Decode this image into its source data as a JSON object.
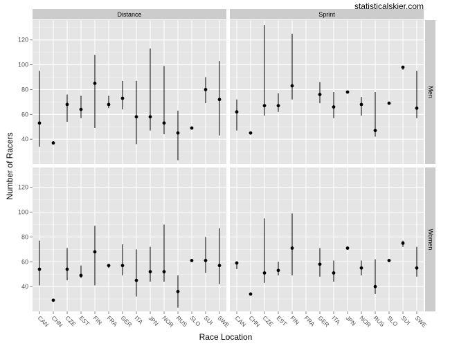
{
  "watermark": "statisticalskier.com",
  "chart_data": {
    "type": "scatter",
    "subtype": "point-range facet grid",
    "xlabel": "Race Location",
    "ylabel": "Number of Racers",
    "ylim": [
      20,
      136
    ],
    "yticks": [
      40,
      60,
      80,
      100,
      120
    ],
    "categories": [
      "CAN",
      "CHN",
      "CZE",
      "EST",
      "FIN",
      "FRA",
      "GER",
      "ITA",
      "JPN",
      "NOR",
      "RUS",
      "SLO",
      "SUI",
      "SWE"
    ],
    "facet_cols": [
      "Distance",
      "Sprint"
    ],
    "facet_rows": [
      "Men",
      "Women"
    ],
    "colors": {
      "panel": "#e5e5e5",
      "grid": "#ffffff",
      "strip": "#cccccc",
      "point": "#000000"
    },
    "panels": [
      {
        "row": "Men",
        "col": "Distance",
        "points": [
          {
            "x": "CAN",
            "y": 53,
            "min": 34,
            "max": 95
          },
          {
            "x": "CHN",
            "y": 37,
            "min": 37,
            "max": 37
          },
          {
            "x": "CZE",
            "y": 68,
            "min": 54,
            "max": 76
          },
          {
            "x": "EST",
            "y": 64,
            "min": 57,
            "max": 75
          },
          {
            "x": "FIN",
            "y": 85,
            "min": 49,
            "max": 108
          },
          {
            "x": "FRA",
            "y": 68,
            "min": 65,
            "max": 75
          },
          {
            "x": "GER",
            "y": 73,
            "min": 64,
            "max": 87
          },
          {
            "x": "ITA",
            "y": 58,
            "min": 36,
            "max": 87
          },
          {
            "x": "JPN",
            "y": 58,
            "min": 47,
            "max": 113
          },
          {
            "x": "NOR",
            "y": 53,
            "min": 44,
            "max": 99
          },
          {
            "x": "RUS",
            "y": 45,
            "min": 23,
            "max": 63
          },
          {
            "x": "SLO",
            "y": 49,
            "min": 49,
            "max": 49
          },
          {
            "x": "SUI",
            "y": 80,
            "min": 69,
            "max": 90
          },
          {
            "x": "SWE",
            "y": 72,
            "min": 43,
            "max": 103
          }
        ]
      },
      {
        "row": "Men",
        "col": "Sprint",
        "points": [
          {
            "x": "CAN",
            "y": 62,
            "min": 47,
            "max": 72
          },
          {
            "x": "CHN",
            "y": 45,
            "min": 45,
            "max": 45
          },
          {
            "x": "CZE",
            "y": 67,
            "min": 59,
            "max": 132
          },
          {
            "x": "EST",
            "y": 67,
            "min": 62,
            "max": 77
          },
          {
            "x": "FIN",
            "y": 83,
            "min": 72,
            "max": 125
          },
          {
            "x": "GER",
            "y": 76,
            "min": 69,
            "max": 86
          },
          {
            "x": "ITA",
            "y": 66,
            "min": 57,
            "max": 78
          },
          {
            "x": "JPN",
            "y": 78,
            "min": 78,
            "max": 78
          },
          {
            "x": "NOR",
            "y": 68,
            "min": 59,
            "max": 74
          },
          {
            "x": "RUS",
            "y": 47,
            "min": 42,
            "max": 78
          },
          {
            "x": "SLO",
            "y": 69,
            "min": 69,
            "max": 69
          },
          {
            "x": "SUI",
            "y": 98,
            "min": 96,
            "max": 99
          },
          {
            "x": "SWE",
            "y": 65,
            "min": 57,
            "max": 95
          }
        ]
      },
      {
        "row": "Women",
        "col": "Distance",
        "points": [
          {
            "x": "CAN",
            "y": 54,
            "min": 41,
            "max": 77
          },
          {
            "x": "CHN",
            "y": 29,
            "min": 29,
            "max": 29
          },
          {
            "x": "CZE",
            "y": 54,
            "min": 45,
            "max": 71
          },
          {
            "x": "EST",
            "y": 49,
            "min": 47,
            "max": 57
          },
          {
            "x": "FIN",
            "y": 68,
            "min": 41,
            "max": 89
          },
          {
            "x": "FRA",
            "y": 57,
            "min": 55,
            "max": 58
          },
          {
            "x": "GER",
            "y": 57,
            "min": 49,
            "max": 74
          },
          {
            "x": "ITA",
            "y": 45,
            "min": 32,
            "max": 70
          },
          {
            "x": "JPN",
            "y": 52,
            "min": 44,
            "max": 72
          },
          {
            "x": "NOR",
            "y": 52,
            "min": 44,
            "max": 90
          },
          {
            "x": "RUS",
            "y": 36,
            "min": 23,
            "max": 49
          },
          {
            "x": "SLO",
            "y": 61,
            "min": 61,
            "max": 61
          },
          {
            "x": "SUI",
            "y": 61,
            "min": 51,
            "max": 80
          },
          {
            "x": "SWE",
            "y": 57,
            "min": 42,
            "max": 87
          }
        ]
      },
      {
        "row": "Women",
        "col": "Sprint",
        "points": [
          {
            "x": "CAN",
            "y": 59,
            "min": 54,
            "max": 60
          },
          {
            "x": "CHN",
            "y": 34,
            "min": 34,
            "max": 34
          },
          {
            "x": "CZE",
            "y": 51,
            "min": 43,
            "max": 95
          },
          {
            "x": "EST",
            "y": 53,
            "min": 49,
            "max": 60
          },
          {
            "x": "FIN",
            "y": 71,
            "min": 49,
            "max": 99
          },
          {
            "x": "GER",
            "y": 58,
            "min": 48,
            "max": 71
          },
          {
            "x": "ITA",
            "y": 51,
            "min": 44,
            "max": 61
          },
          {
            "x": "JPN",
            "y": 71,
            "min": 71,
            "max": 71
          },
          {
            "x": "NOR",
            "y": 55,
            "min": 49,
            "max": 61
          },
          {
            "x": "RUS",
            "y": 40,
            "min": 34,
            "max": 62
          },
          {
            "x": "SLO",
            "y": 61,
            "min": 61,
            "max": 61
          },
          {
            "x": "SUI",
            "y": 75,
            "min": 72,
            "max": 77
          },
          {
            "x": "SWE",
            "y": 55,
            "min": 48,
            "max": 72
          }
        ]
      }
    ]
  }
}
